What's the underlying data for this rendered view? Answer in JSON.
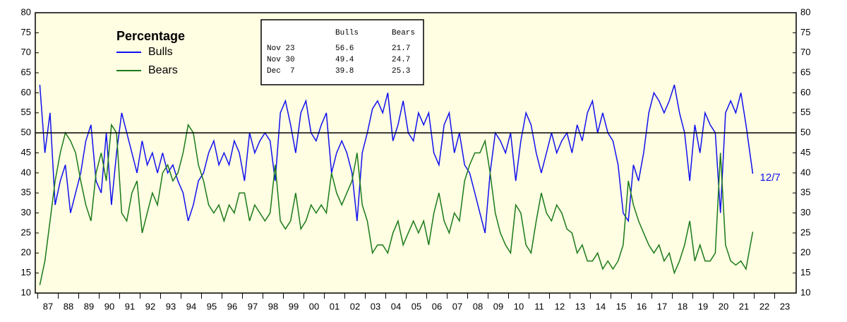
{
  "chart_data": {
    "type": "line",
    "legend_title": "Percentage",
    "annotation": "12/7",
    "reference_line": 50,
    "xlim": [
      1986.88,
      2024.05
    ],
    "ylim": [
      10,
      80
    ],
    "yticks": [
      10,
      15,
      20,
      25,
      30,
      35,
      40,
      45,
      50,
      55,
      60,
      65,
      70,
      75,
      80
    ],
    "xticks": [
      {
        "value": 1987,
        "label": "87"
      },
      {
        "value": 1988,
        "label": "88"
      },
      {
        "value": 1989,
        "label": "89"
      },
      {
        "value": 1990,
        "label": "90"
      },
      {
        "value": 1991,
        "label": "91"
      },
      {
        "value": 1992,
        "label": "92"
      },
      {
        "value": 1993,
        "label": "93"
      },
      {
        "value": 1994,
        "label": "94"
      },
      {
        "value": 1995,
        "label": "95"
      },
      {
        "value": 1996,
        "label": "96"
      },
      {
        "value": 1997,
        "label": "97"
      },
      {
        "value": 1998,
        "label": "98"
      },
      {
        "value": 1999,
        "label": "99"
      },
      {
        "value": 2000,
        "label": "00"
      },
      {
        "value": 2001,
        "label": "01"
      },
      {
        "value": 2002,
        "label": "02"
      },
      {
        "value": 2003,
        "label": "03"
      },
      {
        "value": 2004,
        "label": "04"
      },
      {
        "value": 2005,
        "label": "05"
      },
      {
        "value": 2006,
        "label": "06"
      },
      {
        "value": 2007,
        "label": "07"
      },
      {
        "value": 2008,
        "label": "08"
      },
      {
        "value": 2009,
        "label": "09"
      },
      {
        "value": 2010,
        "label": "10"
      },
      {
        "value": 2011,
        "label": "11"
      },
      {
        "value": 2012,
        "label": "12"
      },
      {
        "value": 2013,
        "label": "13"
      },
      {
        "value": 2014,
        "label": "14"
      },
      {
        "value": 2015,
        "label": "15"
      },
      {
        "value": 2016,
        "label": "16"
      },
      {
        "value": 2017,
        "label": "17"
      },
      {
        "value": 2018,
        "label": "18"
      },
      {
        "value": 2019,
        "label": "19"
      },
      {
        "value": 2020,
        "label": "20"
      },
      {
        "value": 2021,
        "label": "21"
      },
      {
        "value": 2022,
        "label": "22"
      },
      {
        "value": 2023,
        "label": "23"
      }
    ],
    "x": [
      1987.1,
      1987.35,
      1987.6,
      1987.85,
      1988.1,
      1988.35,
      1988.6,
      1988.85,
      1989.1,
      1989.35,
      1989.6,
      1989.85,
      1990.1,
      1990.35,
      1990.6,
      1990.85,
      1991.1,
      1991.35,
      1991.6,
      1991.85,
      1992.1,
      1992.35,
      1992.6,
      1992.85,
      1993.1,
      1993.35,
      1993.6,
      1993.85,
      1994.1,
      1994.35,
      1994.6,
      1994.85,
      1995.1,
      1995.35,
      1995.6,
      1995.85,
      1996.1,
      1996.35,
      1996.6,
      1996.85,
      1997.1,
      1997.35,
      1997.6,
      1997.85,
      1998.1,
      1998.35,
      1998.6,
      1998.85,
      1999.1,
      1999.35,
      1999.6,
      1999.85,
      2000.1,
      2000.35,
      2000.6,
      2000.85,
      2001.1,
      2001.35,
      2001.6,
      2001.85,
      2002.1,
      2002.35,
      2002.6,
      2002.85,
      2003.1,
      2003.35,
      2003.6,
      2003.85,
      2004.1,
      2004.35,
      2004.6,
      2004.85,
      2005.1,
      2005.35,
      2005.6,
      2005.85,
      2006.1,
      2006.35,
      2006.6,
      2006.85,
      2007.1,
      2007.35,
      2007.6,
      2007.85,
      2008.1,
      2008.35,
      2008.6,
      2008.85,
      2009.1,
      2009.35,
      2009.6,
      2009.85,
      2010.1,
      2010.35,
      2010.6,
      2010.85,
      2011.1,
      2011.35,
      2011.6,
      2011.85,
      2012.1,
      2012.35,
      2012.6,
      2012.85,
      2013.1,
      2013.35,
      2013.6,
      2013.85,
      2014.1,
      2014.35,
      2014.6,
      2014.85,
      2015.1,
      2015.35,
      2015.6,
      2015.85,
      2016.1,
      2016.35,
      2016.6,
      2016.85,
      2017.1,
      2017.35,
      2017.6,
      2017.85,
      2018.1,
      2018.35,
      2018.6,
      2018.85,
      2019.1,
      2019.35,
      2019.6,
      2019.85,
      2020.1,
      2020.35,
      2020.6,
      2020.85,
      2021.1,
      2021.35,
      2021.6,
      2021.93
    ],
    "series": [
      {
        "name": "Bulls",
        "color": "#1010ee",
        "values": [
          62,
          45,
          55,
          32,
          38,
          42,
          30,
          35,
          40,
          48,
          52,
          38,
          35,
          50,
          32,
          45,
          55,
          50,
          45,
          40,
          48,
          42,
          45,
          40,
          45,
          40,
          42,
          38,
          35,
          28,
          32,
          38,
          40,
          45,
          48,
          42,
          45,
          42,
          48,
          45,
          38,
          50,
          45,
          48,
          50,
          48,
          38,
          55,
          58,
          52,
          45,
          55,
          58,
          50,
          48,
          52,
          55,
          40,
          45,
          48,
          45,
          40,
          28,
          45,
          50,
          56,
          58,
          55,
          60,
          48,
          52,
          58,
          50,
          48,
          55,
          52,
          55,
          45,
          42,
          52,
          55,
          45,
          50,
          42,
          40,
          35,
          30,
          25,
          40,
          50,
          48,
          45,
          50,
          38,
          48,
          55,
          52,
          45,
          40,
          45,
          50,
          45,
          48,
          50,
          45,
          52,
          48,
          55,
          58,
          50,
          55,
          50,
          48,
          42,
          30,
          28,
          42,
          38,
          45,
          55,
          60,
          58,
          55,
          58,
          62,
          55,
          50,
          38,
          52,
          45,
          55,
          52,
          50,
          30,
          55,
          58,
          55,
          60,
          52,
          39.8
        ]
      },
      {
        "name": "Bears",
        "color": "#1a7a1a",
        "values": [
          12,
          18,
          28,
          38,
          45,
          50,
          48,
          45,
          38,
          32,
          28,
          40,
          45,
          38,
          52,
          50,
          30,
          28,
          35,
          38,
          25,
          30,
          35,
          32,
          40,
          42,
          38,
          40,
          45,
          52,
          50,
          42,
          38,
          32,
          30,
          32,
          28,
          32,
          30,
          35,
          35,
          28,
          32,
          30,
          28,
          30,
          42,
          28,
          26,
          28,
          35,
          26,
          28,
          32,
          30,
          32,
          30,
          40,
          35,
          32,
          35,
          38,
          45,
          32,
          28,
          20,
          22,
          22,
          20,
          25,
          28,
          22,
          25,
          28,
          25,
          28,
          22,
          30,
          35,
          28,
          25,
          30,
          28,
          38,
          42,
          45,
          45,
          48,
          40,
          30,
          25,
          22,
          20,
          32,
          30,
          22,
          20,
          28,
          35,
          30,
          28,
          32,
          30,
          26,
          25,
          20,
          22,
          18,
          18,
          20,
          16,
          18,
          16,
          18,
          22,
          38,
          32,
          28,
          25,
          22,
          20,
          22,
          18,
          20,
          15,
          18,
          22,
          28,
          18,
          22,
          18,
          18,
          20,
          45,
          22,
          18,
          17,
          18,
          16,
          25.3
        ]
      }
    ],
    "table": {
      "columns": [
        "Bulls",
        "Bears"
      ],
      "rows": [
        {
          "label": "Nov 23",
          "values": [
            56.6,
            21.7
          ]
        },
        {
          "label": "Nov 30",
          "values": [
            49.4,
            24.7
          ]
        },
        {
          "label": "Dec  7",
          "values": [
            39.8,
            25.3
          ]
        }
      ]
    }
  }
}
